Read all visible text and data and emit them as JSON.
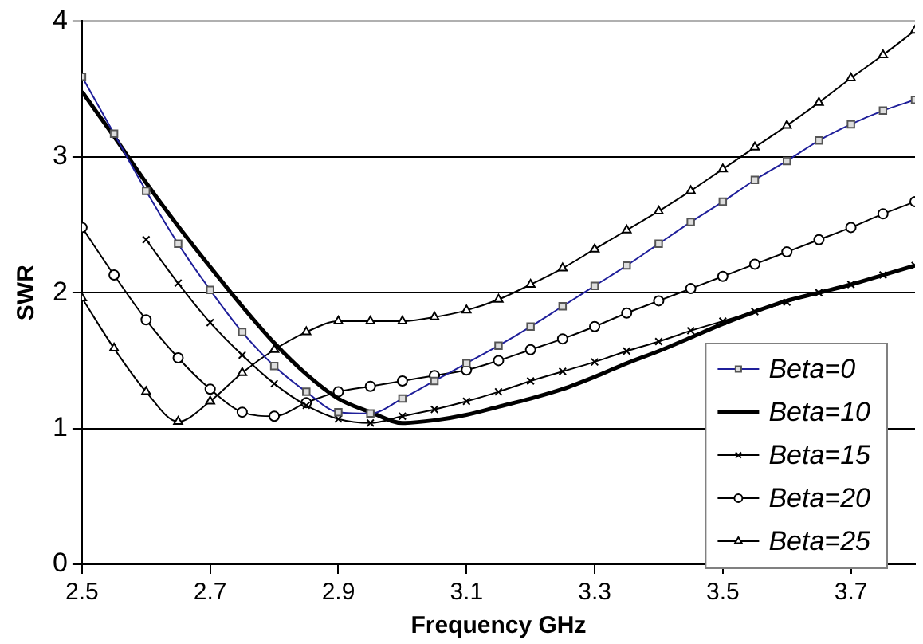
{
  "chart_data": {
    "type": "line",
    "xlabel": "Frequency GHz",
    "ylabel": "SWR",
    "xlim": [
      2.5,
      3.8
    ],
    "xticks": [
      2.5,
      2.7,
      2.9,
      3.1,
      3.3,
      3.5,
      3.7
    ],
    "ylim": [
      0,
      4
    ],
    "yticks": [
      0,
      1,
      2,
      3,
      4
    ],
    "grid": "y",
    "legend": "bottom right",
    "x": [
      2.5,
      2.55,
      2.6,
      2.65,
      2.7,
      2.75,
      2.8,
      2.85,
      2.9,
      2.95,
      3.0,
      3.05,
      3.1,
      3.15,
      3.2,
      3.25,
      3.3,
      3.35,
      3.4,
      3.45,
      3.5,
      3.55,
      3.6,
      3.65,
      3.7,
      3.75,
      3.8
    ],
    "series": [
      {
        "name": "Beta=0",
        "color": "#1f1f9a",
        "marker": "square",
        "values": [
          3.59,
          3.17,
          2.75,
          2.36,
          2.02,
          1.71,
          1.46,
          1.27,
          1.12,
          1.11,
          1.22,
          1.35,
          1.48,
          1.61,
          1.75,
          1.9,
          2.05,
          2.2,
          2.36,
          2.52,
          2.67,
          2.83,
          2.97,
          3.12,
          3.24,
          3.34,
          3.42
        ]
      },
      {
        "name": "Beta=10",
        "color": "#000000",
        "marker": "none",
        "values": [
          3.48,
          3.15,
          2.81,
          2.49,
          2.19,
          1.9,
          1.63,
          1.4,
          1.22,
          1.12,
          1.04,
          1.06,
          1.1,
          1.16,
          1.22,
          1.29,
          1.38,
          1.48,
          1.57,
          1.67,
          1.77,
          1.86,
          1.94,
          2.0,
          2.06,
          2.13,
          2.2
        ]
      },
      {
        "name": "Beta=15",
        "color": "#000000",
        "marker": "cross",
        "values": [
          null,
          null,
          2.39,
          2.07,
          1.78,
          1.54,
          1.33,
          1.17,
          1.07,
          1.04,
          1.09,
          1.14,
          1.2,
          1.27,
          1.35,
          1.42,
          1.49,
          1.57,
          1.64,
          1.72,
          1.79,
          1.86,
          1.93,
          2.0,
          2.06,
          2.13,
          2.2
        ]
      },
      {
        "name": "Beta=20",
        "color": "#000000",
        "marker": "circle",
        "values": [
          2.48,
          2.13,
          1.8,
          1.52,
          1.29,
          1.12,
          1.09,
          1.19,
          1.27,
          1.31,
          1.35,
          1.39,
          1.43,
          1.5,
          1.58,
          1.66,
          1.75,
          1.85,
          1.94,
          2.03,
          2.12,
          2.21,
          2.3,
          2.39,
          2.48,
          2.58,
          2.67
        ]
      },
      {
        "name": "Beta=25",
        "color": "#000000",
        "marker": "triangle",
        "values": [
          1.96,
          1.59,
          1.27,
          1.05,
          1.2,
          1.41,
          1.58,
          1.71,
          1.79,
          1.79,
          1.79,
          1.82,
          1.87,
          1.95,
          2.06,
          2.18,
          2.32,
          2.46,
          2.6,
          2.75,
          2.91,
          3.07,
          3.23,
          3.4,
          3.58,
          3.75,
          3.93
        ]
      }
    ]
  }
}
